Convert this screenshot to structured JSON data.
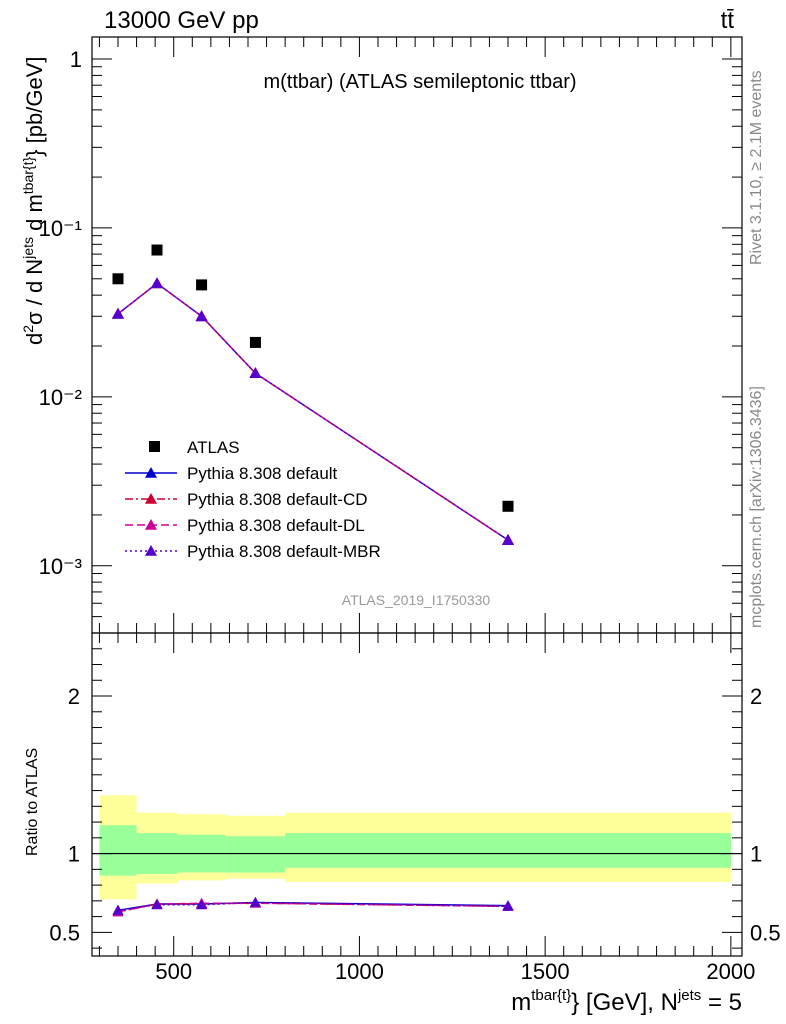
{
  "header": {
    "left": "13000 GeV pp",
    "right": "tt̄"
  },
  "side": {
    "rivet": "Rivet 3.1.10, ≥ 2.1M events",
    "mcplots": "mcplots.cern.ch [arXiv:1306.3436]"
  },
  "chart_data": [
    {
      "type": "line",
      "title": "m(ttbar) (ATLAS semileptonic ttbar)",
      "watermark": "ATLAS_2019_I1750330",
      "ylabel": "d²σ / d N^jets d m^tbar{t} [pb/GeV]",
      "yscale": "log",
      "ylim": [
        0.0004,
        1.35
      ],
      "xlim": [
        280,
        2030
      ],
      "yticks": [
        {
          "value": 1,
          "label": "1"
        },
        {
          "value": 0.1,
          "label": "10⁻¹"
        },
        {
          "value": 0.01,
          "label": "10⁻²"
        },
        {
          "value": 0.001,
          "label": "10⁻³"
        }
      ],
      "legend_position": "bottom-left",
      "data": {
        "name": "ATLAS",
        "x": [
          350,
          455,
          575,
          720,
          1400
        ],
        "y": [
          0.05,
          0.074,
          0.046,
          0.021,
          0.00225
        ]
      },
      "series": [
        {
          "name": "Pythia 8.308 default",
          "color": "#0000cc",
          "dash": "solid",
          "x": [
            350,
            455,
            575,
            720,
            1400
          ],
          "y": [
            0.031,
            0.047,
            0.03,
            0.0138,
            0.00142
          ]
        },
        {
          "name": "Pythia 8.308 default-CD",
          "color": "#cc0033",
          "dash": "dashdot",
          "x": [
            350,
            455,
            575,
            720,
            1400
          ],
          "y": [
            0.031,
            0.047,
            0.03,
            0.0138,
            0.00142
          ]
        },
        {
          "name": "Pythia 8.308 default-DL",
          "color": "#cc0099",
          "dash": "dashed",
          "x": [
            350,
            455,
            575,
            720,
            1400
          ],
          "y": [
            0.031,
            0.047,
            0.03,
            0.0138,
            0.00142
          ]
        },
        {
          "name": "Pythia 8.308 default-MBR",
          "color": "#5500cc",
          "dash": "dotted",
          "x": [
            350,
            455,
            575,
            720,
            1400
          ],
          "y": [
            0.031,
            0.047,
            0.03,
            0.0138,
            0.00142
          ]
        }
      ]
    },
    {
      "type": "line",
      "ylabel": "Ratio to ATLAS",
      "xlabel": "m^tbar{t} [GeV], N^jets = 5",
      "ylim": [
        0.35,
        2.4
      ],
      "xlim": [
        280,
        2030
      ],
      "yticks": [
        0.5,
        1,
        2
      ],
      "xticks": [
        500,
        1000,
        1500,
        2000
      ],
      "bins": [
        {
          "lo": 300,
          "hi": 400,
          "stat_lo": 0.86,
          "stat_hi": 1.18,
          "tot_lo": 0.71,
          "tot_hi": 1.37
        },
        {
          "lo": 400,
          "hi": 510,
          "stat_lo": 0.87,
          "stat_hi": 1.13,
          "tot_lo": 0.81,
          "tot_hi": 1.26
        },
        {
          "lo": 510,
          "hi": 640,
          "stat_lo": 0.88,
          "stat_hi": 1.12,
          "tot_lo": 0.83,
          "tot_hi": 1.25
        },
        {
          "lo": 640,
          "hi": 800,
          "stat_lo": 0.88,
          "stat_hi": 1.11,
          "tot_lo": 0.84,
          "tot_hi": 1.24
        },
        {
          "lo": 800,
          "hi": 2000,
          "stat_lo": 0.91,
          "stat_hi": 1.13,
          "tot_lo": 0.82,
          "tot_hi": 1.26
        }
      ],
      "series": [
        {
          "name": "Pythia 8.308 default",
          "color": "#0000cc",
          "dash": "solid",
          "x": [
            350,
            455,
            575,
            720,
            1400
          ],
          "y": [
            0.64,
            0.68,
            0.68,
            0.69,
            0.67
          ]
        },
        {
          "name": "Pythia 8.308 default-CD",
          "color": "#cc0033",
          "dash": "dashdot",
          "x": [
            350,
            455,
            575,
            720,
            1400
          ],
          "y": [
            0.63,
            0.68,
            0.68,
            0.685,
            0.665
          ]
        },
        {
          "name": "Pythia 8.308 default-DL",
          "color": "#cc0099",
          "dash": "dashed",
          "x": [
            350,
            455,
            575,
            720,
            1400
          ],
          "y": [
            0.63,
            0.68,
            0.685,
            0.685,
            0.665
          ]
        },
        {
          "name": "Pythia 8.308 default-MBR",
          "color": "#5500cc",
          "dash": "dotted",
          "x": [
            350,
            455,
            575,
            720,
            1400
          ],
          "y": [
            0.64,
            0.675,
            0.675,
            0.69,
            0.665
          ]
        }
      ]
    }
  ]
}
